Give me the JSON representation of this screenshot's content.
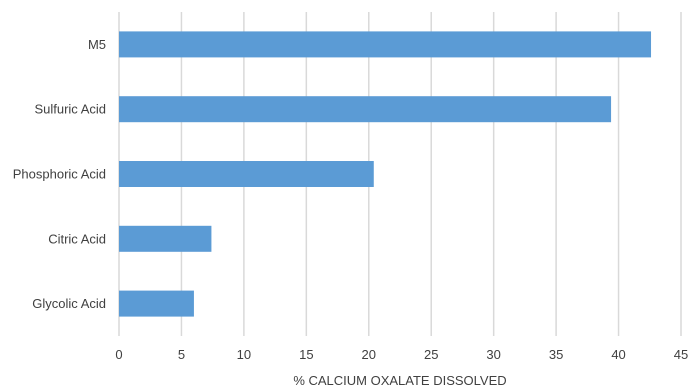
{
  "chart_data": {
    "type": "bar",
    "orientation": "horizontal",
    "categories": [
      "M5",
      "Sulfuric Acid",
      "Phosphoric Acid",
      "Citric Acid",
      "Glycolic Acid"
    ],
    "values": [
      42.6,
      39.4,
      20.4,
      7.4,
      6.0
    ],
    "xlabel": "% CALCIUM OXALATE DISSOLVED",
    "ylabel": "",
    "xlim": [
      0,
      45
    ],
    "xticks": [
      "0",
      "5",
      "10",
      "15",
      "20",
      "25",
      "30",
      "35",
      "40",
      "45"
    ],
    "grid": true,
    "legend": false,
    "bar_color": "#5B9BD5",
    "grid_color": "#D9D9D9"
  }
}
